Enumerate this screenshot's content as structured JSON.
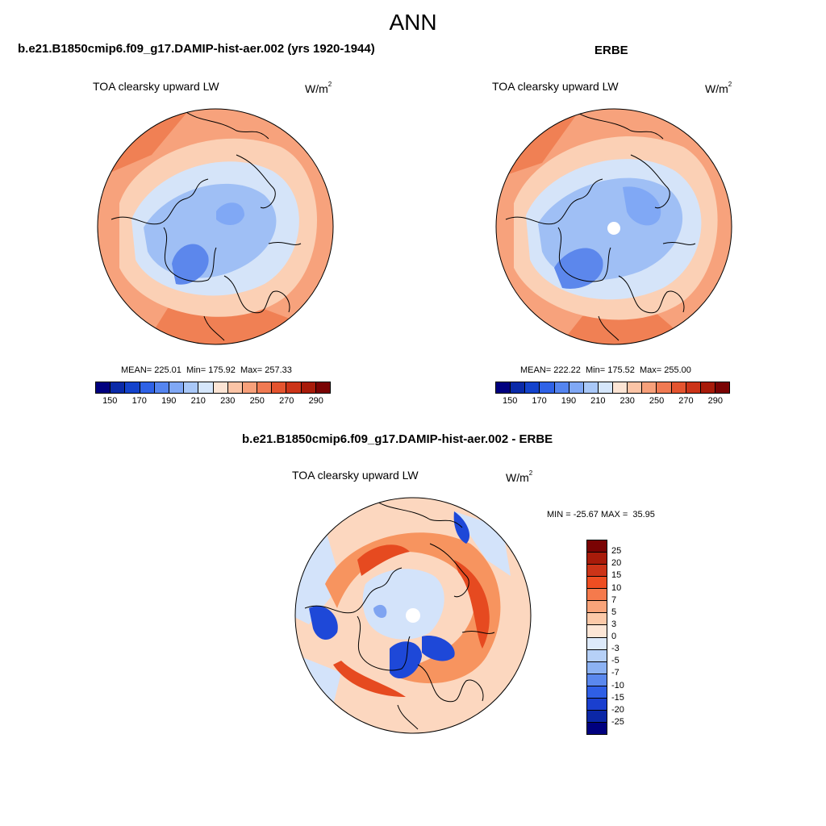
{
  "figure": {
    "title": "ANN",
    "field_label": "TOA clearsky upward LW",
    "units_base": "W/m",
    "units_exp": "2"
  },
  "panels": [
    {
      "title": "b.e21.B1850cmip6.f09_g17.DAMIP-hist-aer.002 (yrs 1920-1944)",
      "stats": "MEAN= 225.01  Min= 175.92  Max= 257.33"
    },
    {
      "title": "ERBE",
      "stats": "MEAN= 222.22  Min= 175.52  Max= 255.00"
    },
    {
      "title": "b.e21.B1850cmip6.f09_g17.DAMIP-hist-aer.002 - ERBE",
      "stats": "MIN = -25.67 MAX =  35.95"
    }
  ],
  "colorbar_abs": {
    "colors": [
      "#00007f",
      "#0a2aa8",
      "#1443cc",
      "#2f62e6",
      "#5585f0",
      "#80a8f5",
      "#a9c8f8",
      "#d5e6fb",
      "#fce4d4",
      "#fbc4a6",
      "#f7a07a",
      "#f07a52",
      "#e4542f",
      "#cc3418",
      "#a81b0a",
      "#7a0303"
    ],
    "ticks": [
      "150",
      "170",
      "190",
      "210",
      "230",
      "250",
      "270",
      "290"
    ]
  },
  "colorbar_diff": {
    "colors": [
      "#7a0303",
      "#a81b0a",
      "#cc3418",
      "#ee4e22",
      "#f57a4c",
      "#f9a47a",
      "#fcc9a8",
      "#fde6d6",
      "#ddeafb",
      "#b6d0f7",
      "#8cb2f3",
      "#5a88ee",
      "#2f5fe6",
      "#1a3fcf",
      "#0b27a6",
      "#00007f"
    ],
    "ticks": [
      "25",
      "20",
      "15",
      "10",
      "7",
      "5",
      "3",
      "0",
      "-3",
      "-5",
      "-7",
      "-10",
      "-15",
      "-20",
      "-25"
    ]
  },
  "maps": {
    "abs_colors": {
      "ocean_warm": "#f7a27c",
      "sub": "#fbd0b5",
      "cool": "#d5e4f9",
      "cold": "#9fbff5",
      "coldest": "#5c87ec",
      "hot": "#f08054"
    },
    "diff_colors": {
      "pos_strong": "#e64a20",
      "pos_mid": "#f7945f",
      "pos_weak": "#fcd7bf",
      "neg_weak": "#d3e3fa",
      "neg_mid": "#7fa4f1",
      "neg_strong": "#1e48d8"
    }
  }
}
